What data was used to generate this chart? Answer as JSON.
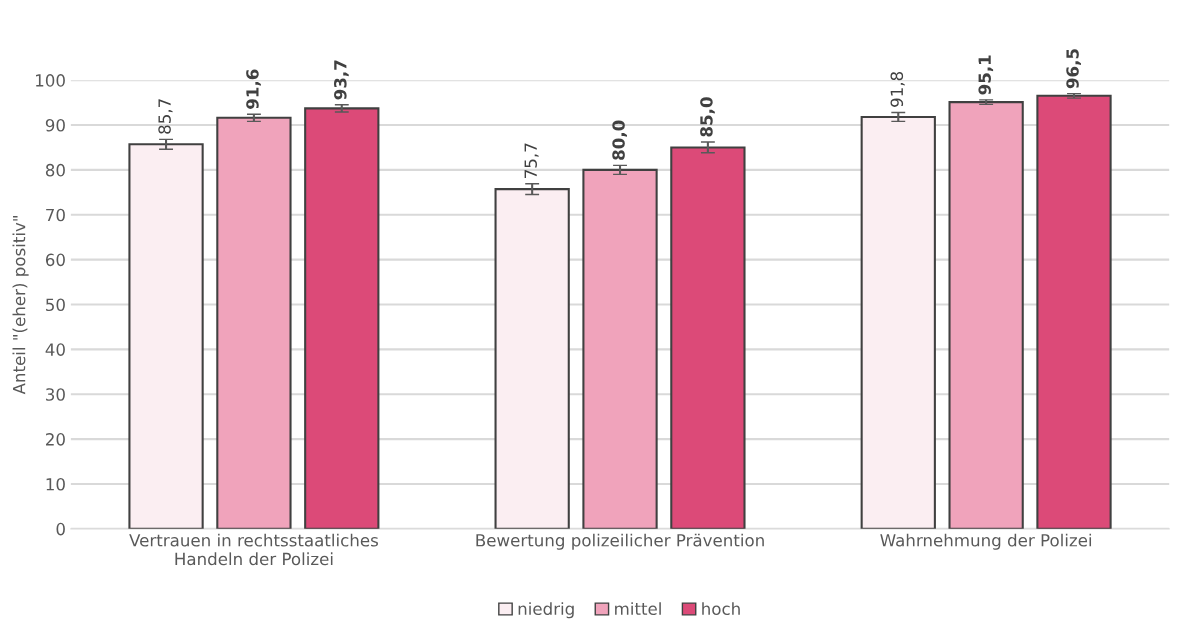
{
  "chart_data": {
    "type": "bar",
    "ylabel": "Anteil \"(eher) positiv\"",
    "categories": [
      "Vertrauen in rechtsstaatliches\nHandeln der Polizei",
      "Bewertung polizeilicher Prävention",
      "Wahrnehmung der Polizei"
    ],
    "series": [
      {
        "name": "niedrig",
        "color": "#fbeef2",
        "values": [
          85.7,
          75.7,
          91.8
        ],
        "errors": [
          1.1,
          1.2,
          1.0
        ],
        "value_labels": [
          "85,7",
          "75,7",
          "91,8"
        ]
      },
      {
        "name": "mittel",
        "color": "#f0a3bb",
        "values": [
          91.6,
          80.0,
          95.1
        ],
        "errors": [
          0.8,
          1.0,
          0.5
        ],
        "value_labels": [
          "91,6",
          "80,0",
          "95,1"
        ]
      },
      {
        "name": "hoch",
        "color": "#dc4a78",
        "values": [
          93.7,
          85.0,
          96.5
        ],
        "errors": [
          0.8,
          1.2,
          0.5
        ],
        "value_labels": [
          "93,7",
          "85,0",
          "96,5"
        ]
      }
    ],
    "ylim": [
      0,
      100
    ],
    "yticks": [
      0,
      10,
      20,
      30,
      40,
      50,
      60,
      70,
      80,
      90,
      100
    ],
    "grid": "y",
    "legend": "bottom"
  }
}
